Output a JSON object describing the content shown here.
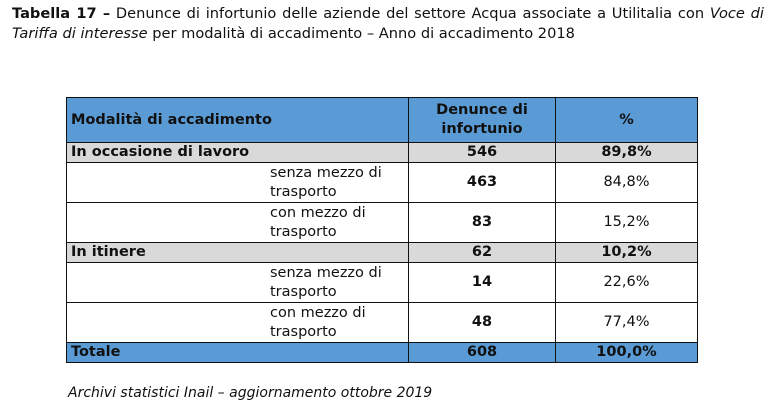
{
  "caption": {
    "label": "Tabella 17 –",
    "text1": " Denunce di infortunio delle aziende del settore Acqua associate a Utilitalia con ",
    "italic": "Voce di Tariffa di interesse",
    "text2": " per modalità di accadimento –  Anno di accadimento 2018"
  },
  "table": {
    "headers": [
      "Modalità di accadimento",
      "Denunce di infortunio",
      "%"
    ],
    "rows": [
      {
        "label": "In occasione di lavoro",
        "count": "546",
        "pct": "89,8%"
      },
      {
        "label": "senza mezzo di trasporto",
        "count": "463",
        "pct": "84,8%"
      },
      {
        "label": "con mezzo di trasporto",
        "count": "83",
        "pct": "15,2%"
      },
      {
        "label": "In itinere",
        "count": "62",
        "pct": "10,2%"
      },
      {
        "label": "senza mezzo di trasporto",
        "count": "14",
        "pct": "22,6%"
      },
      {
        "label": "con mezzo di trasporto",
        "count": "48",
        "pct": "77,4%"
      }
    ],
    "total": {
      "label": "Totale",
      "count": "608",
      "pct": "100,0%"
    }
  },
  "source": "Archivi statistici Inail – aggiornamento ottobre 2019",
  "colors": {
    "header": "#5b9bd5",
    "group": "#d9d9d9"
  }
}
